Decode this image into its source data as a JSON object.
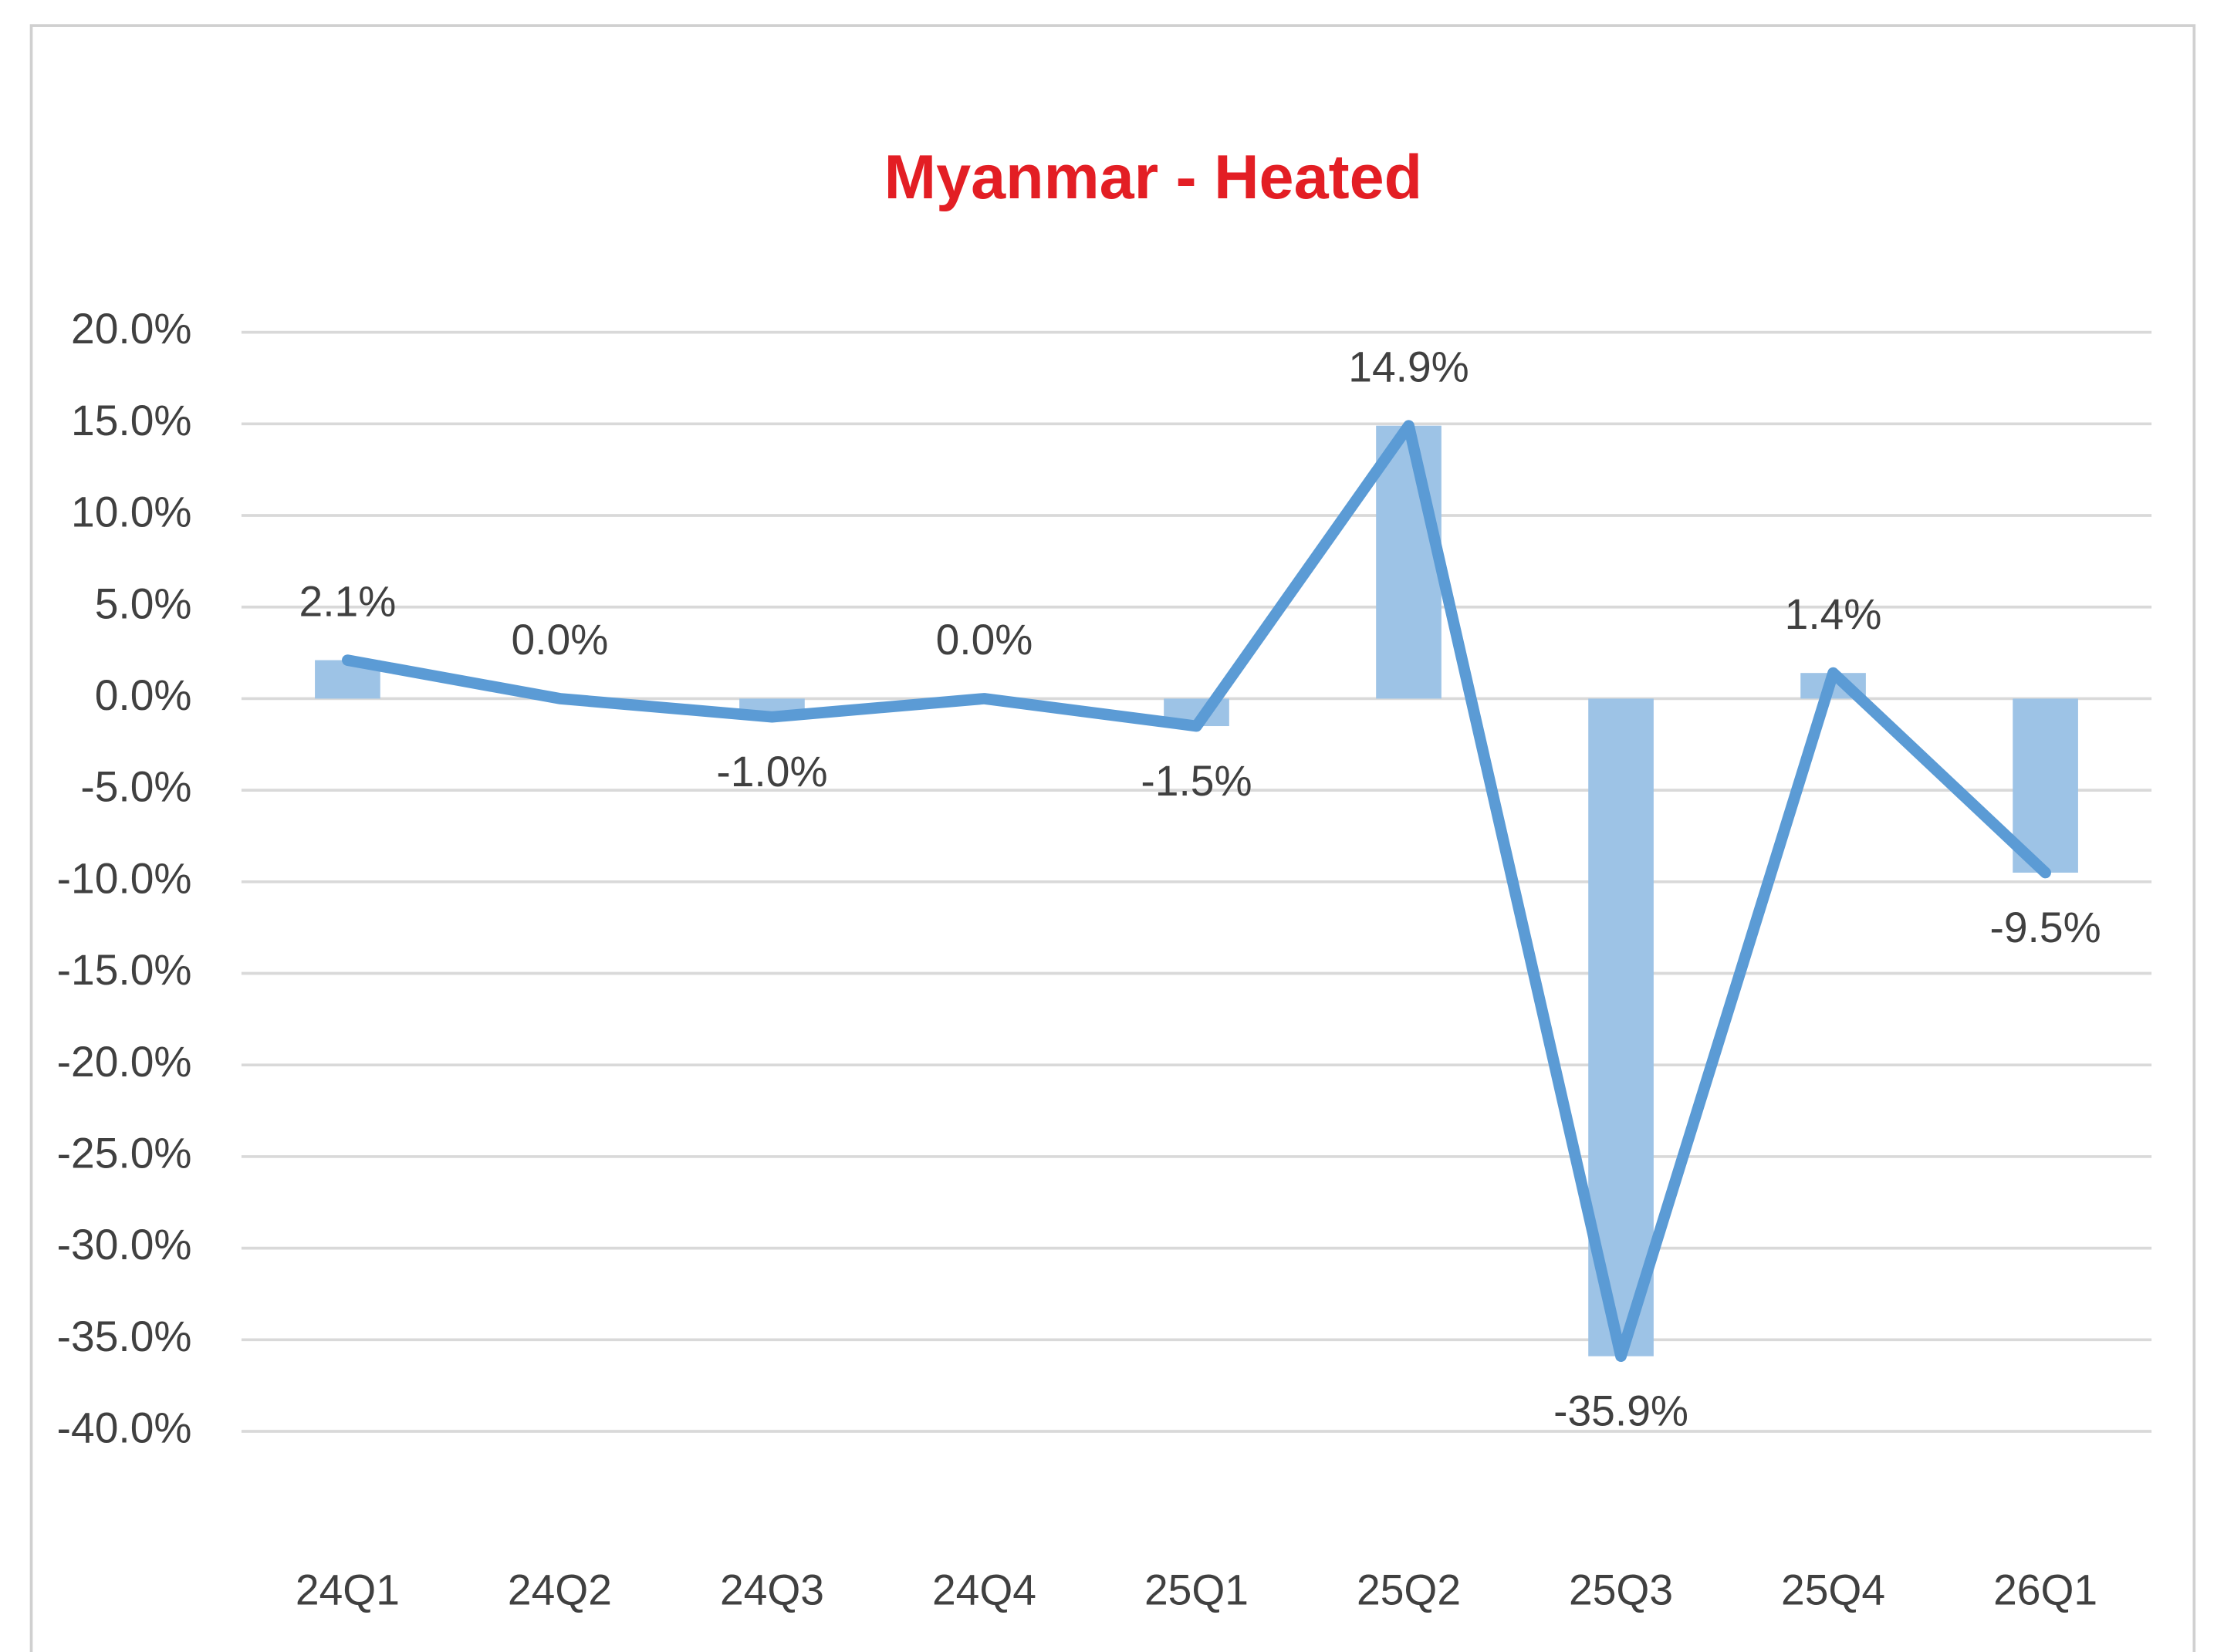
{
  "chart_data": {
    "type": "combo",
    "title": "Myanmar - Heated",
    "categories": [
      "24Q1",
      "24Q2",
      "24Q3",
      "24Q4",
      "25Q1",
      "25Q2",
      "25Q3",
      "25Q4",
      "26Q1"
    ],
    "values": [
      2.1,
      0.0,
      -1.0,
      0.0,
      -1.5,
      14.9,
      -35.9,
      1.4,
      -9.5
    ],
    "value_labels": [
      "2.1%",
      "0.0%",
      "-1.0%",
      "0.0%",
      "-1.5%",
      "14.9%",
      "-35.9%",
      "1.4%",
      "-9.5%"
    ],
    "bar_color": "#9dc3e6",
    "line_color": "#5b9bd5",
    "title_color": "#e31e24",
    "ylim": [
      -40,
      20
    ],
    "yticks": [
      {
        "value": 20,
        "label": "20.0%"
      },
      {
        "value": 15,
        "label": "15.0%"
      },
      {
        "value": 10,
        "label": "10.0%"
      },
      {
        "value": 5,
        "label": "5.0%"
      },
      {
        "value": 0,
        "label": "0.0%"
      },
      {
        "value": -5,
        "label": "-5.0%"
      },
      {
        "value": -10,
        "label": "-10.0%"
      },
      {
        "value": -15,
        "label": "-15.0%"
      },
      {
        "value": -20,
        "label": "-20.0%"
      },
      {
        "value": -25,
        "label": "-25.0%"
      },
      {
        "value": -30,
        "label": "-30.0%"
      },
      {
        "value": -35,
        "label": "-35.0%"
      },
      {
        "value": -40,
        "label": "-40.0%"
      }
    ],
    "grid": true
  }
}
